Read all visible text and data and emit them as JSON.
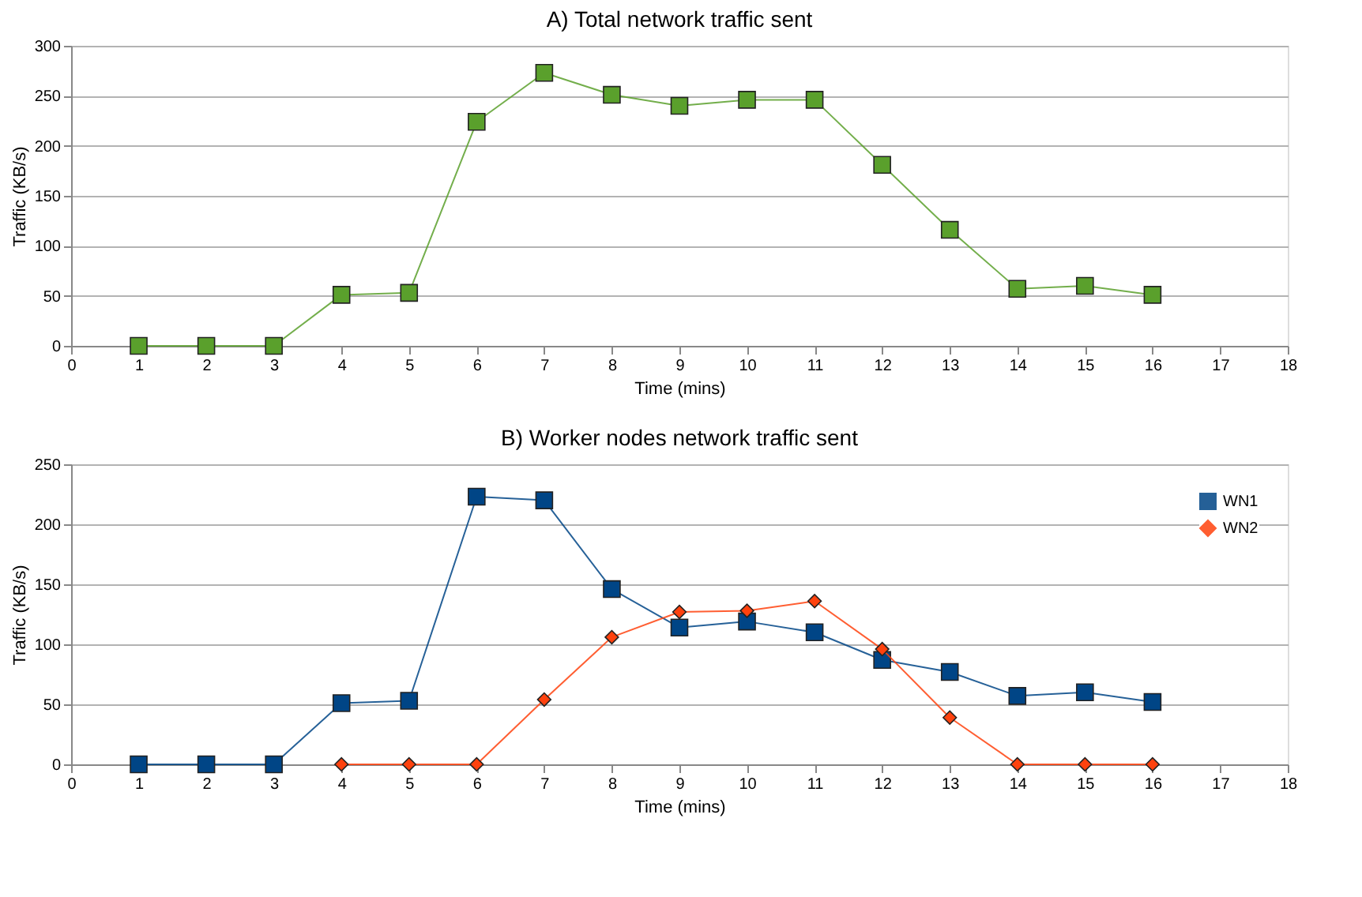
{
  "chart_data": [
    {
      "type": "line",
      "title": "A) Total network traffic sent",
      "xlabel": "Time (mins)",
      "ylabel": "Traffic (KB/s)",
      "x": [
        1,
        2,
        3,
        4,
        5,
        6,
        7,
        8,
        9,
        10,
        11,
        12,
        13,
        14,
        15,
        16
      ],
      "xlim": [
        0,
        18
      ],
      "xticks": [
        0,
        1,
        2,
        3,
        4,
        5,
        6,
        7,
        8,
        9,
        10,
        11,
        12,
        13,
        14,
        15,
        16,
        17,
        18
      ],
      "ylim": [
        0,
        300
      ],
      "yticks": [
        0,
        50,
        100,
        150,
        200,
        250,
        300
      ],
      "grid": "y",
      "marker": "square",
      "series": [
        {
          "color": "#5aa02c",
          "values": [
            0,
            0,
            0,
            51,
            53,
            224,
            273,
            251,
            240,
            246,
            246,
            181,
            116,
            57,
            60,
            51
          ]
        }
      ]
    },
    {
      "type": "line",
      "title": "B) Worker nodes network traffic sent",
      "xlabel": "Time (mins)",
      "ylabel": "Traffic (KB/s)",
      "x": [
        1,
        2,
        3,
        4,
        5,
        6,
        7,
        8,
        9,
        10,
        11,
        12,
        13,
        14,
        15,
        16
      ],
      "xlim": [
        0,
        18
      ],
      "xticks": [
        0,
        1,
        2,
        3,
        4,
        5,
        6,
        7,
        8,
        9,
        10,
        11,
        12,
        13,
        14,
        15,
        16,
        17,
        18
      ],
      "ylim": [
        0,
        250
      ],
      "yticks": [
        0,
        50,
        100,
        150,
        200,
        250
      ],
      "grid": "y",
      "legend": "top right",
      "series": [
        {
          "name": "WN1",
          "color": "#004586",
          "marker": "square",
          "values": [
            0,
            0,
            0,
            51,
            53,
            223,
            220,
            146,
            114,
            119,
            110,
            87,
            77,
            57,
            60,
            52
          ]
        },
        {
          "name": "WN2",
          "color": "#ff420e",
          "marker": "diamond",
          "values": [
            null,
            null,
            null,
            0,
            0,
            0,
            54,
            106,
            127,
            128,
            136,
            96,
            39,
            0,
            0,
            0
          ]
        }
      ]
    }
  ]
}
